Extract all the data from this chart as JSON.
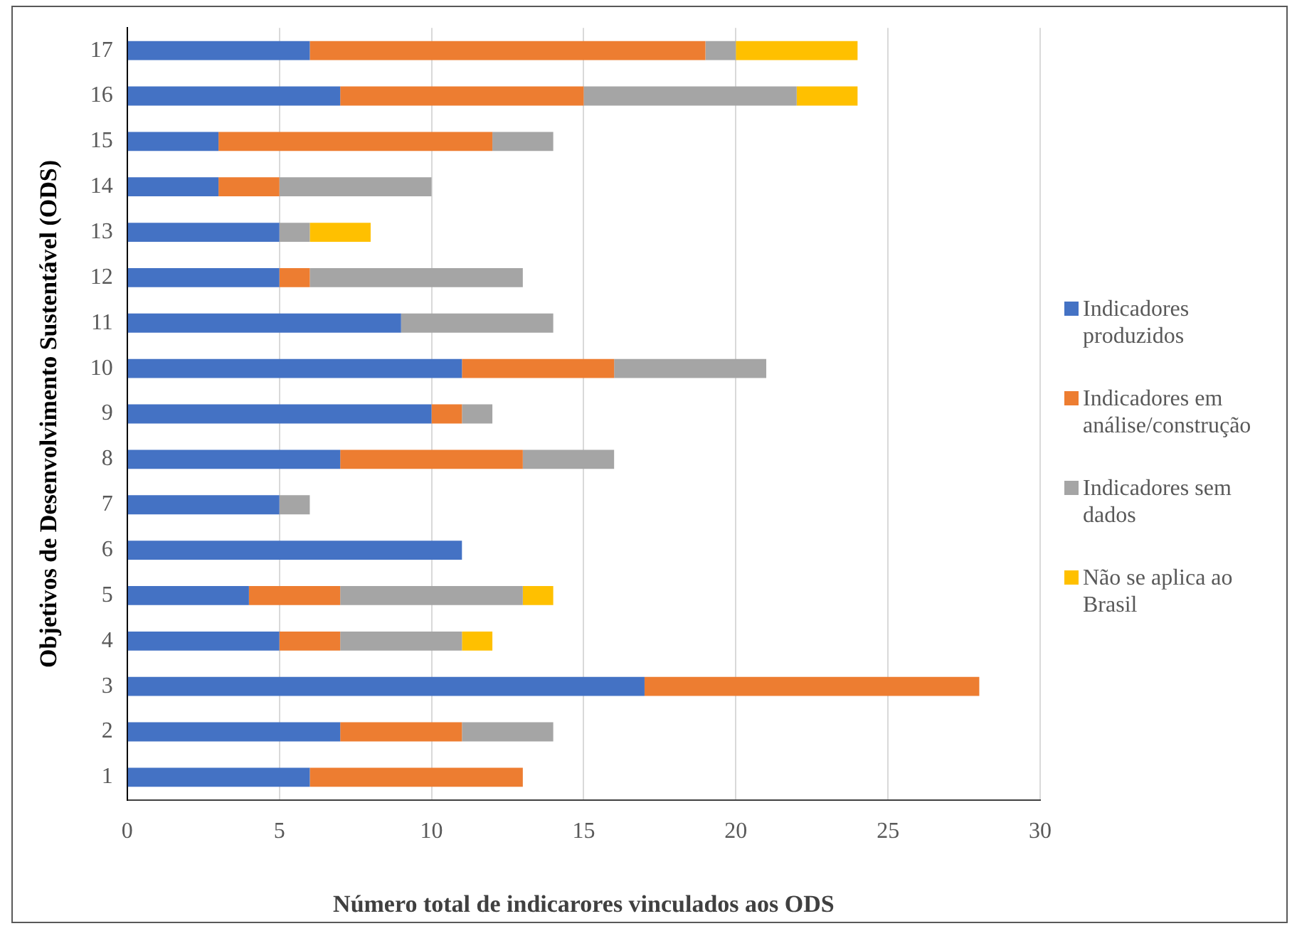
{
  "chart_data": {
    "type": "bar",
    "orientation": "horizontal",
    "stacked": true,
    "xlabel": "Número total de indicarores vinculados aos ODS",
    "ylabel": "Objetivos de Desenvolvimento Sustentável (ODS)",
    "categories": [
      "17",
      "16",
      "15",
      "14",
      "13",
      "12",
      "11",
      "10",
      "9",
      "8",
      "7",
      "6",
      "5",
      "4",
      "3",
      "2",
      "1"
    ],
    "series": [
      {
        "name": "Indicadores produzidos",
        "color": "#4472c4",
        "values": [
          6,
          7,
          3,
          3,
          5,
          5,
          9,
          11,
          10,
          7,
          5,
          11,
          4,
          5,
          17,
          7,
          6
        ]
      },
      {
        "name": "Indicadores em análise/construção",
        "color": "#ed7d31",
        "values": [
          13,
          8,
          9,
          2,
          0,
          1,
          0,
          5,
          1,
          6,
          0,
          0,
          3,
          2,
          11,
          4,
          7
        ]
      },
      {
        "name": "Indicadores sem dados",
        "color": "#a5a5a5",
        "values": [
          1,
          7,
          2,
          5,
          1,
          7,
          5,
          5,
          1,
          3,
          1,
          0,
          6,
          4,
          0,
          3,
          0
        ]
      },
      {
        "name": "Não se aplica ao Brasil",
        "color": "#ffc000",
        "values": [
          4,
          2,
          0,
          0,
          2,
          0,
          0,
          0,
          0,
          0,
          0,
          0,
          1,
          1,
          0,
          0,
          0
        ]
      }
    ],
    "xlim": [
      0,
      30
    ],
    "xticks": [
      0,
      5,
      10,
      15,
      20,
      25,
      30
    ],
    "grid": "x",
    "legend": "right"
  }
}
